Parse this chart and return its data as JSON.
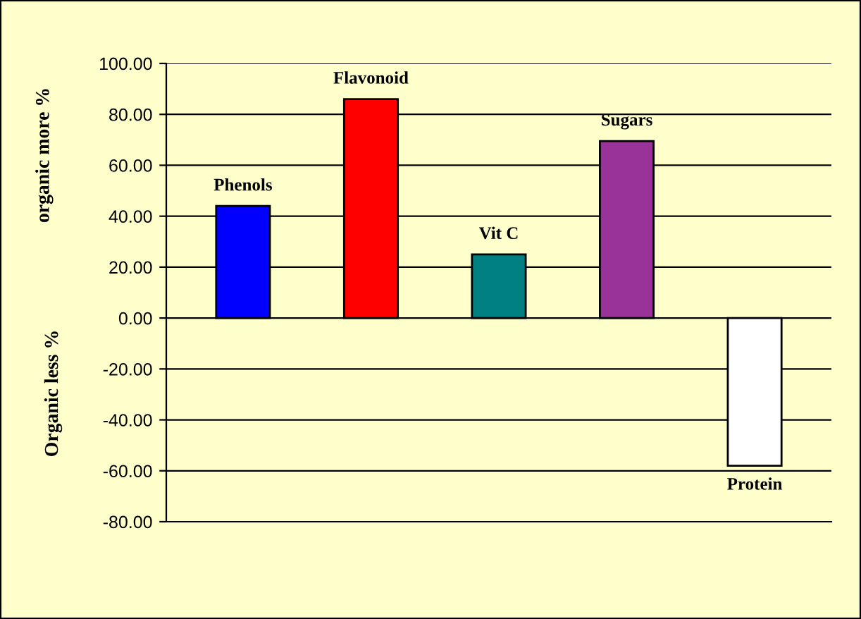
{
  "chart_data": {
    "type": "bar",
    "ylabel": "organic more %",
    "annotations": [
      "Organic less %"
    ],
    "categories": [
      "Phenols",
      "Flavonoid",
      "Vit C",
      "Sugars",
      "Protein"
    ],
    "values": [
      44,
      86,
      25,
      69.5,
      -58
    ],
    "colors": [
      "#0000ff",
      "#ff0000",
      "#008080",
      "#993399",
      "#ffffff"
    ],
    "ylim": [
      -80,
      100
    ],
    "yticks": [
      {
        "value": -80,
        "label": "-80.00"
      },
      {
        "value": -60,
        "label": "-60.00"
      },
      {
        "value": -40,
        "label": "-40.00"
      },
      {
        "value": -20,
        "label": "-20.00"
      },
      {
        "value": 0,
        "label": "0.00"
      },
      {
        "value": 20,
        "label": "20.00"
      },
      {
        "value": 40,
        "label": "40.00"
      },
      {
        "value": 60,
        "label": "60.00"
      },
      {
        "value": 80,
        "label": "80.00"
      },
      {
        "value": 100,
        "label": "100.00"
      }
    ],
    "grid": "y",
    "legend": false
  }
}
